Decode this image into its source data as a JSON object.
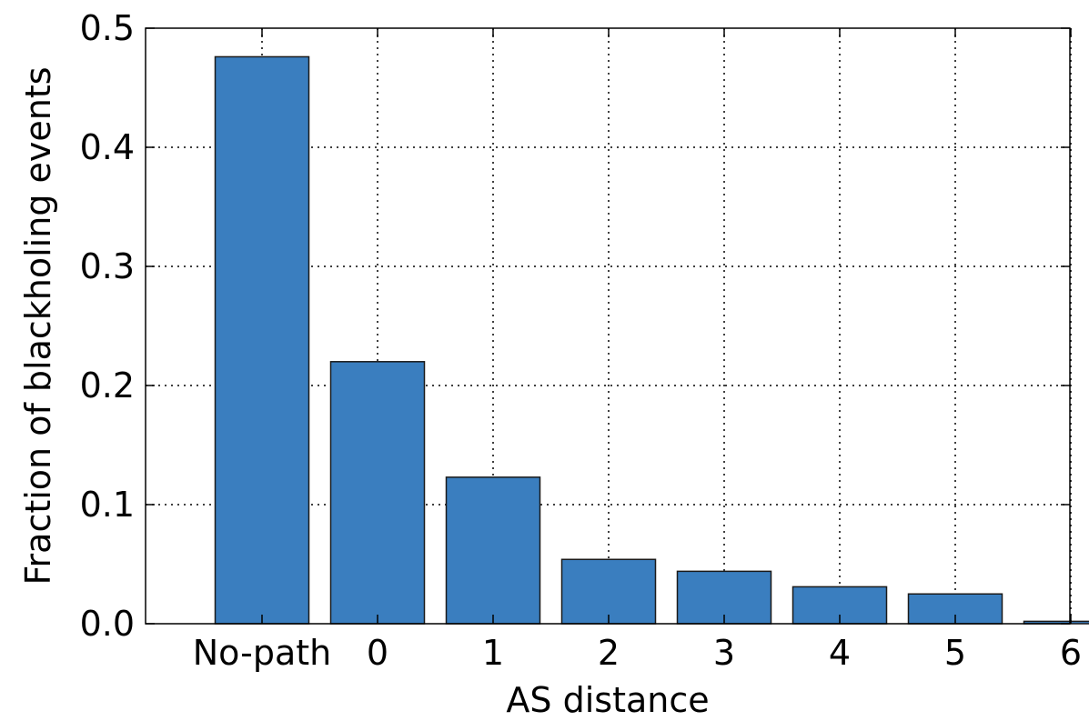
{
  "chart_data": {
    "type": "bar",
    "categories": [
      "No-path",
      "0",
      "1",
      "2",
      "3",
      "4",
      "5",
      "6"
    ],
    "values": [
      0.476,
      0.22,
      0.123,
      0.054,
      0.044,
      0.031,
      0.025,
      0.002
    ],
    "xlabel": "AS distance",
    "ylabel": "Fraction of blackholing events",
    "ylim": [
      0,
      0.5
    ],
    "yticks": [
      "0.0",
      "0.1",
      "0.2",
      "0.3",
      "0.4",
      "0.5"
    ],
    "grid": true,
    "bar_color": "#3a7ebf",
    "legend": "none"
  }
}
